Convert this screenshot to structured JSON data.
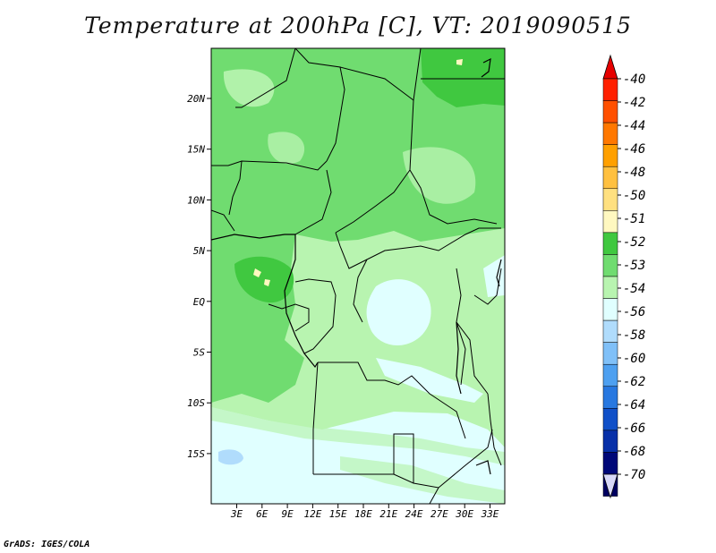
{
  "title": "Temperature at 200hPa [C], VT: 2019090515",
  "credit": "GrADS: IGES/COLA",
  "x_ticks": [
    "3E",
    "6E",
    "9E",
    "12E",
    "15E",
    "18E",
    "21E",
    "24E",
    "27E",
    "30E",
    "33E"
  ],
  "y_ticks": [
    "20N",
    "15N",
    "10N",
    "5N",
    "EQ",
    "5S",
    "10S",
    "15S"
  ],
  "colorbar": {
    "levels": [
      "-40",
      "-42",
      "-44",
      "-46",
      "-48",
      "-50",
      "-51",
      "-52",
      "-53",
      "-54",
      "-56",
      "-58",
      "-60",
      "-62",
      "-64",
      "-66",
      "-68",
      "-70"
    ],
    "colors": [
      "#ff2000",
      "#ff5000",
      "#ff7800",
      "#ffa000",
      "#ffc040",
      "#ffe080",
      "#fff8c0",
      "#40c840",
      "#70dc70",
      "#b8f4b0",
      "#e0ffff",
      "#b0dcfc",
      "#80c0f8",
      "#4ea0f0",
      "#2878e0",
      "#1050c8",
      "#0830a8",
      "#000878",
      "#000060"
    ],
    "top_color": "#e60000",
    "bottom_color": "#d8d8f8"
  }
}
